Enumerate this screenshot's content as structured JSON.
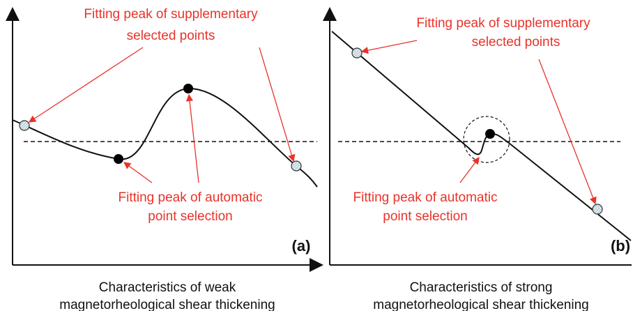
{
  "panels": [
    {
      "label": "(a)",
      "supplementary_annotation": [
        "Fitting peak of supplementary",
        "selected points"
      ],
      "automatic_annotation": [
        "Fitting peak of automatic",
        "point selection"
      ],
      "caption": [
        "Characteristics of weak",
        "magnetorheological shear thickening"
      ]
    },
    {
      "label": "(b)",
      "supplementary_annotation": [
        "Fitting peak of supplementary",
        "selected points"
      ],
      "automatic_annotation": [
        "Fitting peak of automatic",
        "point selection"
      ],
      "caption": [
        "Characteristics of strong",
        "magnetorheological shear thickening"
      ]
    }
  ]
}
